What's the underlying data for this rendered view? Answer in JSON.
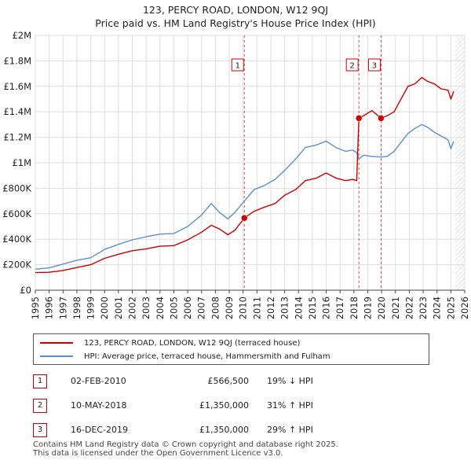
{
  "title_line1": "123, PERCY ROAD, LONDON, W12 9QJ",
  "title_line2": "Price paid vs. HM Land Registry's House Price Index (HPI)",
  "chart_data": {
    "type": "line",
    "title": "123, PERCY ROAD, LONDON, W12 9QJ — Price paid vs. HM Land Registry's House Price Index (HPI)",
    "xlabel": "",
    "ylabel": "",
    "xlim": [
      1995,
      2026
    ],
    "ylim": [
      0,
      2000000
    ],
    "x_ticks": [
      1995,
      1996,
      1997,
      1998,
      1999,
      2000,
      2001,
      2002,
      2003,
      2004,
      2005,
      2006,
      2007,
      2008,
      2009,
      2010,
      2011,
      2012,
      2013,
      2014,
      2015,
      2016,
      2017,
      2018,
      2019,
      2020,
      2021,
      2022,
      2023,
      2024,
      2025,
      2026
    ],
    "y_ticks": [
      {
        "value": 0,
        "label": "£0"
      },
      {
        "value": 200000,
        "label": "£200K"
      },
      {
        "value": 400000,
        "label": "£400K"
      },
      {
        "value": 600000,
        "label": "£600K"
      },
      {
        "value": 800000,
        "label": "£800K"
      },
      {
        "value": 1000000,
        "label": "£1M"
      },
      {
        "value": 1200000,
        "label": "£1.2M"
      },
      {
        "value": 1400000,
        "label": "£1.4M"
      },
      {
        "value": 1600000,
        "label": "£1.6M"
      },
      {
        "value": 1800000,
        "label": "£1.8M"
      },
      {
        "value": 2000000,
        "label": "£2M"
      }
    ],
    "grid": true,
    "series": [
      {
        "name": "123, PERCY ROAD, LONDON, W12 9QJ (terraced house)",
        "color": "#cc0000",
        "points": [
          [
            1995.0,
            138000
          ],
          [
            1996.0,
            141000
          ],
          [
            1997.0,
            155000
          ],
          [
            1998.0,
            178000
          ],
          [
            1999.0,
            200000
          ],
          [
            2000.0,
            250000
          ],
          [
            2001.0,
            282000
          ],
          [
            2002.0,
            310000
          ],
          [
            2003.0,
            325000
          ],
          [
            2004.0,
            345000
          ],
          [
            2005.0,
            350000
          ],
          [
            2006.0,
            395000
          ],
          [
            2007.0,
            455000
          ],
          [
            2007.7,
            510000
          ],
          [
            2008.3,
            480000
          ],
          [
            2008.9,
            435000
          ],
          [
            2009.4,
            470000
          ],
          [
            2010.09,
            566500
          ],
          [
            2010.8,
            620000
          ],
          [
            2011.5,
            650000
          ],
          [
            2012.3,
            680000
          ],
          [
            2013.0,
            745000
          ],
          [
            2013.8,
            790000
          ],
          [
            2014.5,
            860000
          ],
          [
            2015.3,
            880000
          ],
          [
            2016.0,
            920000
          ],
          [
            2016.7,
            880000
          ],
          [
            2017.4,
            860000
          ],
          [
            2017.9,
            870000
          ],
          [
            2018.2,
            860000
          ],
          [
            2018.36,
            1350000
          ],
          [
            2018.7,
            1370000
          ],
          [
            2019.3,
            1410000
          ],
          [
            2019.96,
            1350000
          ],
          [
            2020.4,
            1370000
          ],
          [
            2020.9,
            1400000
          ],
          [
            2021.4,
            1500000
          ],
          [
            2021.9,
            1600000
          ],
          [
            2022.4,
            1620000
          ],
          [
            2022.9,
            1670000
          ],
          [
            2023.3,
            1640000
          ],
          [
            2023.8,
            1620000
          ],
          [
            2024.3,
            1580000
          ],
          [
            2024.8,
            1570000
          ],
          [
            2025.0,
            1500000
          ],
          [
            2025.2,
            1560000
          ]
        ]
      },
      {
        "name": "HPI: Average price, terraced house, Hammersmith and Fulham",
        "color": "#5b8fd0",
        "points": [
          [
            1995.0,
            165000
          ],
          [
            1996.0,
            175000
          ],
          [
            1997.0,
            205000
          ],
          [
            1998.0,
            235000
          ],
          [
            1999.0,
            255000
          ],
          [
            2000.0,
            320000
          ],
          [
            2001.0,
            360000
          ],
          [
            2002.0,
            395000
          ],
          [
            2003.0,
            420000
          ],
          [
            2004.0,
            440000
          ],
          [
            2005.0,
            445000
          ],
          [
            2006.0,
            500000
          ],
          [
            2007.0,
            590000
          ],
          [
            2007.7,
            680000
          ],
          [
            2008.3,
            610000
          ],
          [
            2008.9,
            560000
          ],
          [
            2009.4,
            610000
          ],
          [
            2010.09,
            700000
          ],
          [
            2010.8,
            790000
          ],
          [
            2011.5,
            820000
          ],
          [
            2012.3,
            870000
          ],
          [
            2013.0,
            940000
          ],
          [
            2013.8,
            1030000
          ],
          [
            2014.5,
            1120000
          ],
          [
            2015.3,
            1140000
          ],
          [
            2016.0,
            1170000
          ],
          [
            2016.7,
            1120000
          ],
          [
            2017.4,
            1090000
          ],
          [
            2017.9,
            1100000
          ],
          [
            2018.2,
            1080000
          ],
          [
            2018.36,
            1030000
          ],
          [
            2018.7,
            1060000
          ],
          [
            2019.3,
            1050000
          ],
          [
            2019.96,
            1045000
          ],
          [
            2020.4,
            1050000
          ],
          [
            2020.9,
            1090000
          ],
          [
            2021.4,
            1160000
          ],
          [
            2021.9,
            1230000
          ],
          [
            2022.4,
            1270000
          ],
          [
            2022.9,
            1300000
          ],
          [
            2023.3,
            1280000
          ],
          [
            2023.8,
            1240000
          ],
          [
            2024.3,
            1210000
          ],
          [
            2024.8,
            1180000
          ],
          [
            2025.0,
            1110000
          ],
          [
            2025.2,
            1170000
          ]
        ]
      }
    ],
    "sales": [
      {
        "n": "1",
        "x": 2010.09,
        "value": 566500
      },
      {
        "n": "2",
        "x": 2018.36,
        "value": 1350000
      },
      {
        "n": "3",
        "x": 2019.96,
        "value": 1350000
      }
    ],
    "shaded_period": [
      2025.3,
      2026
    ]
  },
  "legend": {
    "property": "123, PERCY ROAD, LONDON, W12 9QJ (terraced house)",
    "hpi": "HPI: Average price, terraced house, Hammersmith and Fulham",
    "property_color": "#cc0000",
    "hpi_color": "#5b8fd0"
  },
  "sales_table": [
    {
      "n": "1",
      "date": "02-FEB-2010",
      "price": "£566,500",
      "hpi": "19% ↓ HPI"
    },
    {
      "n": "2",
      "date": "10-MAY-2018",
      "price": "£1,350,000",
      "hpi": "31% ↑ HPI"
    },
    {
      "n": "3",
      "date": "16-DEC-2019",
      "price": "£1,350,000",
      "hpi": "29% ↑ HPI"
    }
  ],
  "footer_line1": "Contains HM Land Registry data © Crown copyright and database right 2025.",
  "footer_line2": "This data is licensed under the Open Government Licence v3.0."
}
